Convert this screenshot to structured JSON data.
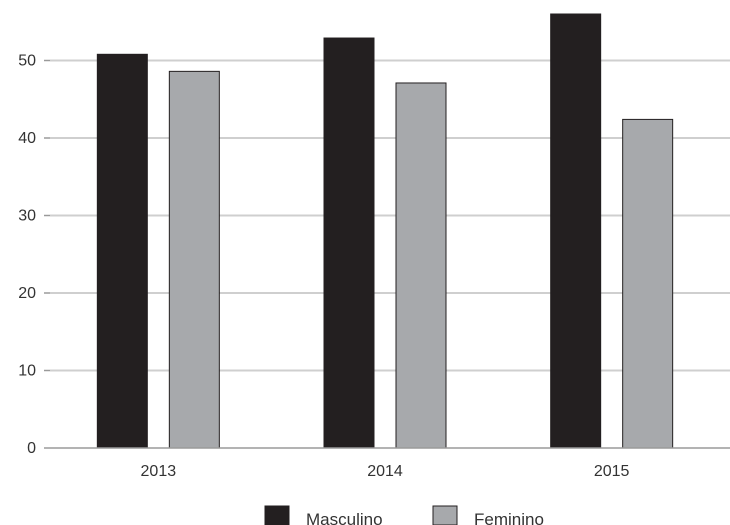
{
  "chart_data": {
    "type": "bar",
    "title": "",
    "xlabel": "",
    "ylabel": "",
    "categories": [
      "2013",
      "2014",
      "2015"
    ],
    "series": [
      {
        "name": "Masculino",
        "values": [
          50.8,
          52.9,
          56.0
        ],
        "color": "#231f20"
      },
      {
        "name": "Feminino",
        "values": [
          48.6,
          47.1,
          42.4
        ],
        "color": "#a7a9ac"
      }
    ],
    "ylim": [
      0,
      56
    ],
    "yticks": [
      0,
      10,
      20,
      30,
      40,
      50
    ],
    "grid": true,
    "legend": "bottom-center"
  }
}
